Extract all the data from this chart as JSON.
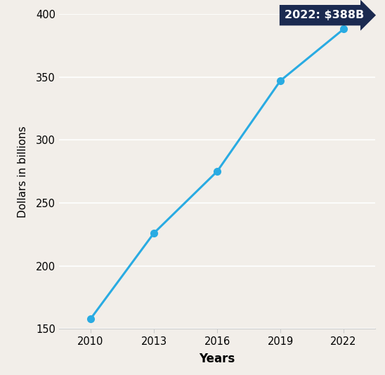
{
  "x": [
    2010,
    2013,
    2016,
    2019,
    2022
  ],
  "y": [
    158,
    226,
    275,
    347,
    388
  ],
  "line_color": "#29ABE2",
  "marker_color": "#29ABE2",
  "marker_size": 7,
  "line_width": 2.2,
  "background_color": "#F2EEE9",
  "plot_bg_color": "#F2EEE9",
  "xlabel": "Years",
  "ylabel": "Dollars in billions",
  "ylim": [
    150,
    400
  ],
  "xlim": [
    2008.5,
    2023.5
  ],
  "yticks": [
    150,
    200,
    250,
    300,
    350,
    400
  ],
  "xticks": [
    2010,
    2013,
    2016,
    2019,
    2022
  ],
  "annotation_text": "2022: $388B",
  "annotation_box_color": "#1B2A50",
  "annotation_text_color": "#FFFFFF",
  "annotation_fontsize": 11.5,
  "xlabel_fontsize": 12,
  "ylabel_fontsize": 11,
  "tick_fontsize": 10.5,
  "grid_color": "#FFFFFF",
  "grid_linewidth": 1.2,
  "spine_color": "#CCCCCC"
}
